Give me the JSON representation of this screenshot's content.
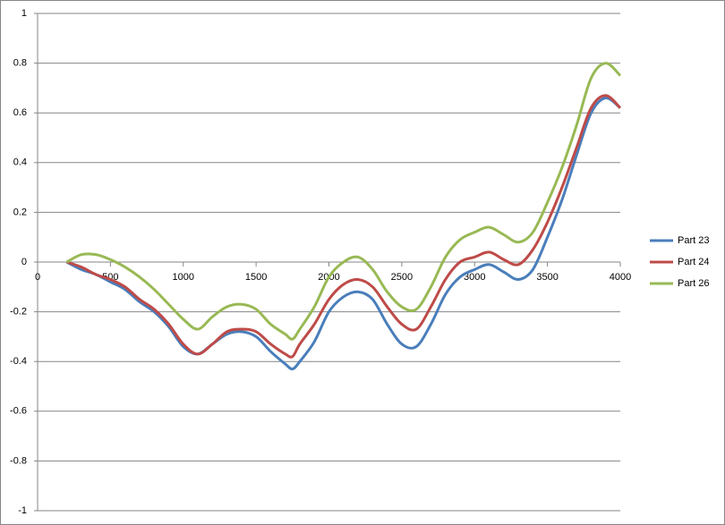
{
  "chart_data": {
    "type": "line",
    "x": [
      200,
      300,
      400,
      500,
      600,
      700,
      800,
      900,
      1000,
      1100,
      1200,
      1300,
      1400,
      1500,
      1600,
      1700,
      1750,
      1800,
      1900,
      2000,
      2100,
      2200,
      2300,
      2400,
      2500,
      2600,
      2700,
      2800,
      2900,
      3000,
      3100,
      3200,
      3300,
      3400,
      3500,
      3600,
      3700,
      3800,
      3900,
      4000
    ],
    "series": [
      {
        "name": "Part 23",
        "color": "#4a7ebb",
        "values": [
          0,
          -0.03,
          -0.05,
          -0.08,
          -0.11,
          -0.16,
          -0.2,
          -0.26,
          -0.34,
          -0.37,
          -0.33,
          -0.29,
          -0.28,
          -0.3,
          -0.36,
          -0.41,
          -0.43,
          -0.4,
          -0.32,
          -0.2,
          -0.14,
          -0.12,
          -0.15,
          -0.25,
          -0.33,
          -0.34,
          -0.25,
          -0.13,
          -0.06,
          -0.03,
          -0.01,
          -0.04,
          -0.07,
          -0.03,
          0.1,
          0.25,
          0.43,
          0.6,
          0.66,
          0.62
        ]
      },
      {
        "name": "Part 24",
        "color": "#be4b48",
        "values": [
          0,
          -0.02,
          -0.05,
          -0.07,
          -0.1,
          -0.15,
          -0.19,
          -0.25,
          -0.33,
          -0.37,
          -0.33,
          -0.28,
          -0.27,
          -0.28,
          -0.33,
          -0.37,
          -0.38,
          -0.33,
          -0.25,
          -0.15,
          -0.09,
          -0.07,
          -0.1,
          -0.18,
          -0.25,
          -0.27,
          -0.18,
          -0.07,
          0,
          0.02,
          0.04,
          0.01,
          -0.01,
          0.05,
          0.16,
          0.3,
          0.46,
          0.62,
          0.67,
          0.62
        ]
      },
      {
        "name": "Part 26",
        "color": "#98b954",
        "values": [
          0,
          0.03,
          0.03,
          0.01,
          -0.02,
          -0.06,
          -0.11,
          -0.17,
          -0.23,
          -0.27,
          -0.22,
          -0.18,
          -0.17,
          -0.19,
          -0.25,
          -0.29,
          -0.31,
          -0.27,
          -0.18,
          -0.06,
          0,
          0.02,
          -0.03,
          -0.12,
          -0.18,
          -0.19,
          -0.1,
          0.02,
          0.09,
          0.12,
          0.14,
          0.11,
          0.08,
          0.12,
          0.24,
          0.38,
          0.55,
          0.74,
          0.8,
          0.75
        ]
      }
    ],
    "xlim": [
      0,
      4000
    ],
    "xticks": [
      0,
      500,
      1000,
      1500,
      2000,
      2500,
      3000,
      3500,
      4000
    ],
    "ylim": [
      -1,
      1
    ],
    "yticks": [
      -1,
      -0.8,
      -0.6,
      -0.4,
      -0.2,
      0,
      0.2,
      0.4,
      0.6,
      0.8,
      1
    ],
    "grid": true,
    "legend": "right"
  }
}
